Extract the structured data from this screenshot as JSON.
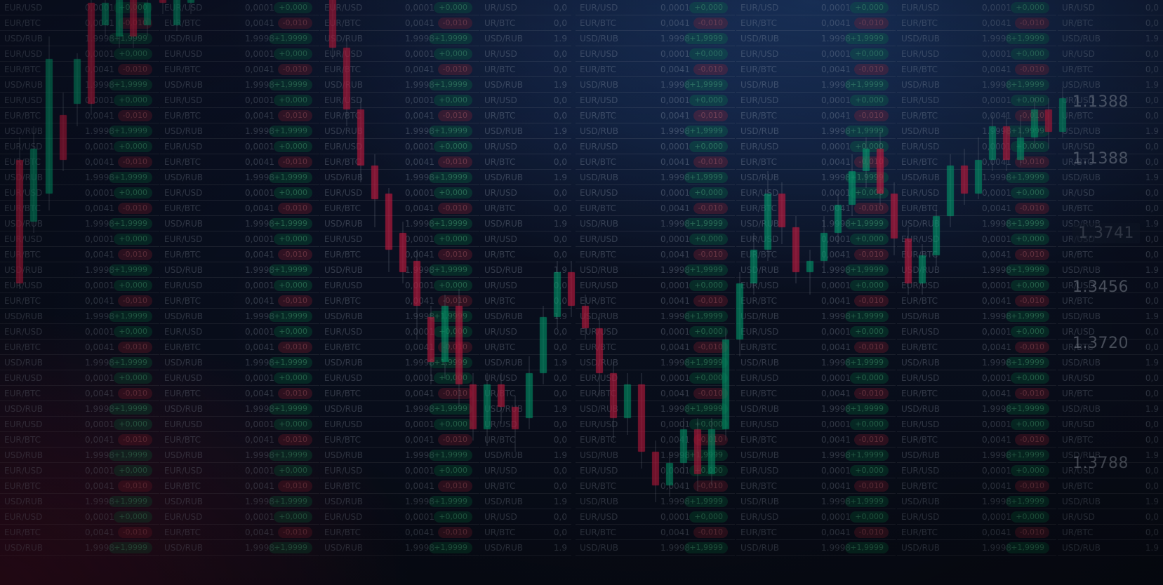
{
  "palette": {
    "bg_dark": "#0b1020",
    "bg_blue": "#2d5faa",
    "bg_magenta": "#821437",
    "candle_green": "#10b981",
    "candle_red": "#e11d48",
    "wick": "#9aa7b8"
  },
  "ticker": {
    "pairs": [
      "EUR/USD",
      "EUR/BTC",
      "USD/RUB"
    ],
    "prices": [
      "0,0001",
      "0,0041",
      "1.9998"
    ],
    "changes": [
      "+0,000",
      "-0,010",
      "+1,9999"
    ],
    "rows_per_column": 36,
    "truncated_pairs": [
      "UR/USD",
      "UR/BTC",
      "USD/RUB"
    ],
    "truncated_prices": [
      "0,0",
      "0,0",
      "1.9"
    ]
  },
  "right_prices": [
    {
      "text": "1.1388"
    },
    {
      "text": "1.1388"
    },
    {
      "text": "1.3741",
      "highlight": true
    },
    {
      "text": "1.3456"
    },
    {
      "text": "1.3720"
    },
    {
      "text": "1.3788"
    }
  ],
  "candles": [
    {
      "x": 28,
      "open": 120,
      "close": 10,
      "high": 140,
      "low": 5,
      "bull": false
    },
    {
      "x": 48,
      "open": 65,
      "close": 130,
      "high": 150,
      "low": 55,
      "bull": true
    },
    {
      "x": 70,
      "open": 90,
      "close": 210,
      "high": 230,
      "low": 75,
      "bull": true
    },
    {
      "x": 90,
      "open": 160,
      "close": 120,
      "high": 180,
      "low": 110,
      "bull": false
    },
    {
      "x": 110,
      "open": 170,
      "close": 210,
      "high": 215,
      "low": 150,
      "bull": true
    },
    {
      "x": 130,
      "open": 260,
      "close": 170,
      "high": 280,
      "low": 160,
      "bull": false
    },
    {
      "x": 150,
      "open": 240,
      "close": 260,
      "high": 275,
      "low": 230,
      "bull": true
    },
    {
      "x": 170,
      "open": 230,
      "close": 280,
      "high": 300,
      "low": 220,
      "bull": true
    },
    {
      "x": 190,
      "open": 280,
      "close": 230,
      "high": 300,
      "low": 220,
      "bull": false
    },
    {
      "x": 210,
      "open": 240,
      "close": 260,
      "high": 270,
      "low": 230,
      "bull": true
    },
    {
      "x": 232,
      "open": 280,
      "close": 260,
      "high": 290,
      "low": 250,
      "bull": false
    },
    {
      "x": 252,
      "open": 240,
      "close": 280,
      "high": 300,
      "low": 235,
      "bull": true
    },
    {
      "x": 272,
      "open": 260,
      "close": 300,
      "high": 320,
      "low": 250,
      "bull": true
    },
    {
      "x": 292,
      "open": 310,
      "close": 270,
      "high": 330,
      "low": 265,
      "bull": false
    },
    {
      "x": 312,
      "open": 290,
      "close": 330,
      "high": 345,
      "low": 285,
      "bull": true
    },
    {
      "x": 332,
      "open": 330,
      "close": 300,
      "high": 350,
      "low": 290,
      "bull": false
    },
    {
      "x": 352,
      "open": 300,
      "close": 320,
      "high": 340,
      "low": 290,
      "bull": true
    },
    {
      "x": 372,
      "open": 330,
      "close": 350,
      "high": 360,
      "low": 320,
      "bull": true
    },
    {
      "x": 392,
      "open": 360,
      "close": 340,
      "high": 372,
      "low": 330,
      "bull": false
    },
    {
      "x": 412,
      "open": 340,
      "close": 360,
      "high": 372,
      "low": 330,
      "bull": true
    },
    {
      "x": 432,
      "open": 370,
      "close": 345,
      "high": 380,
      "low": 340,
      "bull": false
    },
    {
      "x": 454,
      "open": 345,
      "close": 325,
      "high": 355,
      "low": 315,
      "bull": false
    },
    {
      "x": 474,
      "open": 325,
      "close": 220,
      "high": 330,
      "low": 210,
      "bull": false
    },
    {
      "x": 494,
      "open": 220,
      "close": 165,
      "high": 228,
      "low": 150,
      "bull": false
    },
    {
      "x": 514,
      "open": 165,
      "close": 115,
      "high": 175,
      "low": 100,
      "bull": false
    },
    {
      "x": 534,
      "open": 115,
      "close": 85,
      "high": 125,
      "low": 60,
      "bull": false
    },
    {
      "x": 554,
      "open": 90,
      "close": 40,
      "high": 95,
      "low": 20,
      "bull": false
    },
    {
      "x": 574,
      "open": 55,
      "close": 20,
      "high": 65,
      "low": 10,
      "bull": false
    },
    {
      "x": 594,
      "open": 30,
      "close": -10,
      "high": 40,
      "low": -40,
      "bull": false
    },
    {
      "x": 614,
      "open": -20,
      "close": -60,
      "high": -10,
      "low": -80,
      "bull": false
    },
    {
      "x": 634,
      "open": -60,
      "close": -10,
      "high": 0,
      "low": -75,
      "bull": true
    },
    {
      "x": 654,
      "open": -10,
      "close": -80,
      "high": 5,
      "low": -100,
      "bull": false
    },
    {
      "x": 674,
      "open": -80,
      "close": -120,
      "high": -70,
      "low": -130,
      "bull": false
    },
    {
      "x": 694,
      "open": -120,
      "close": -80,
      "high": -70,
      "low": -135,
      "bull": true
    },
    {
      "x": 714,
      "open": -80,
      "close": -100,
      "high": -70,
      "low": -115,
      "bull": false
    },
    {
      "x": 734,
      "open": -100,
      "close": -120,
      "high": -90,
      "low": -140,
      "bull": false
    },
    {
      "x": 754,
      "open": -110,
      "close": -70,
      "high": -55,
      "low": -120,
      "bull": true
    },
    {
      "x": 774,
      "open": -70,
      "close": -20,
      "high": -10,
      "low": -80,
      "bull": true
    },
    {
      "x": 794,
      "open": -20,
      "close": 20,
      "high": 30,
      "low": -30,
      "bull": true
    },
    {
      "x": 814,
      "open": 20,
      "close": -10,
      "high": 30,
      "low": -20,
      "bull": false
    },
    {
      "x": 834,
      "open": -10,
      "close": -30,
      "high": 0,
      "low": -40,
      "bull": false
    },
    {
      "x": 854,
      "open": -30,
      "close": -70,
      "high": -20,
      "low": -90,
      "bull": false
    },
    {
      "x": 874,
      "open": -70,
      "close": -110,
      "high": -60,
      "low": -130,
      "bull": false
    },
    {
      "x": 894,
      "open": -110,
      "close": -80,
      "high": -70,
      "low": -125,
      "bull": true
    },
    {
      "x": 914,
      "open": -80,
      "close": -140,
      "high": -70,
      "low": -155,
      "bull": false
    },
    {
      "x": 934,
      "open": -140,
      "close": -170,
      "high": -130,
      "low": -185,
      "bull": false
    },
    {
      "x": 954,
      "open": -170,
      "close": -150,
      "high": -140,
      "low": -180,
      "bull": true
    },
    {
      "x": 974,
      "open": -150,
      "close": -120,
      "high": -110,
      "low": -160,
      "bull": true
    },
    {
      "x": 994,
      "open": -120,
      "close": -160,
      "high": -110,
      "low": -175,
      "bull": false
    },
    {
      "x": 1014,
      "open": -160,
      "close": -120,
      "high": -110,
      "low": -170,
      "bull": true
    },
    {
      "x": 1034,
      "open": -120,
      "close": -40,
      "high": -30,
      "low": -130,
      "bull": true
    },
    {
      "x": 1054,
      "open": -40,
      "close": 10,
      "high": 20,
      "low": -55,
      "bull": true
    },
    {
      "x": 1074,
      "open": 10,
      "close": 40,
      "high": 55,
      "low": 0,
      "bull": true
    },
    {
      "x": 1094,
      "open": 40,
      "close": 90,
      "high": 110,
      "low": 30,
      "bull": true
    },
    {
      "x": 1114,
      "open": 90,
      "close": 60,
      "high": 100,
      "low": 45,
      "bull": false
    },
    {
      "x": 1134,
      "open": 60,
      "close": 20,
      "high": 70,
      "low": 10,
      "bull": false
    },
    {
      "x": 1154,
      "open": 20,
      "close": 30,
      "high": 40,
      "low": 0,
      "bull": true
    },
    {
      "x": 1174,
      "open": 30,
      "close": 55,
      "high": 70,
      "low": 25,
      "bull": true
    },
    {
      "x": 1194,
      "open": 55,
      "close": 80,
      "high": 90,
      "low": 45,
      "bull": true
    },
    {
      "x": 1214,
      "open": 80,
      "close": 110,
      "high": 125,
      "low": 70,
      "bull": true
    },
    {
      "x": 1234,
      "open": 110,
      "close": 130,
      "high": 140,
      "low": 95,
      "bull": true
    },
    {
      "x": 1254,
      "open": 130,
      "close": 90,
      "high": 145,
      "low": 80,
      "bull": false
    },
    {
      "x": 1274,
      "open": 90,
      "close": 50,
      "high": 100,
      "low": 35,
      "bull": false
    },
    {
      "x": 1294,
      "open": 50,
      "close": 10,
      "high": 60,
      "low": 0,
      "bull": false
    },
    {
      "x": 1314,
      "open": 10,
      "close": 35,
      "high": 45,
      "low": 0,
      "bull": true
    },
    {
      "x": 1334,
      "open": 35,
      "close": 70,
      "high": 80,
      "low": 25,
      "bull": true
    },
    {
      "x": 1354,
      "open": 70,
      "close": 115,
      "high": 125,
      "low": 60,
      "bull": true
    },
    {
      "x": 1374,
      "open": 115,
      "close": 90,
      "high": 130,
      "low": 80,
      "bull": false
    },
    {
      "x": 1394,
      "open": 90,
      "close": 120,
      "high": 140,
      "low": 85,
      "bull": true
    },
    {
      "x": 1414,
      "open": 120,
      "close": 150,
      "high": 160,
      "low": 110,
      "bull": true
    },
    {
      "x": 1434,
      "open": 150,
      "close": 120,
      "high": 162,
      "low": 110,
      "bull": false
    },
    {
      "x": 1454,
      "open": 120,
      "close": 140,
      "high": 160,
      "low": 115,
      "bull": true
    },
    {
      "x": 1474,
      "open": 140,
      "close": 165,
      "high": 175,
      "low": 130,
      "bull": true
    },
    {
      "x": 1494,
      "open": 165,
      "close": 145,
      "high": 175,
      "low": 130,
      "bull": false
    },
    {
      "x": 1514,
      "open": 145,
      "close": 175,
      "high": 185,
      "low": 140,
      "bull": true
    }
  ]
}
